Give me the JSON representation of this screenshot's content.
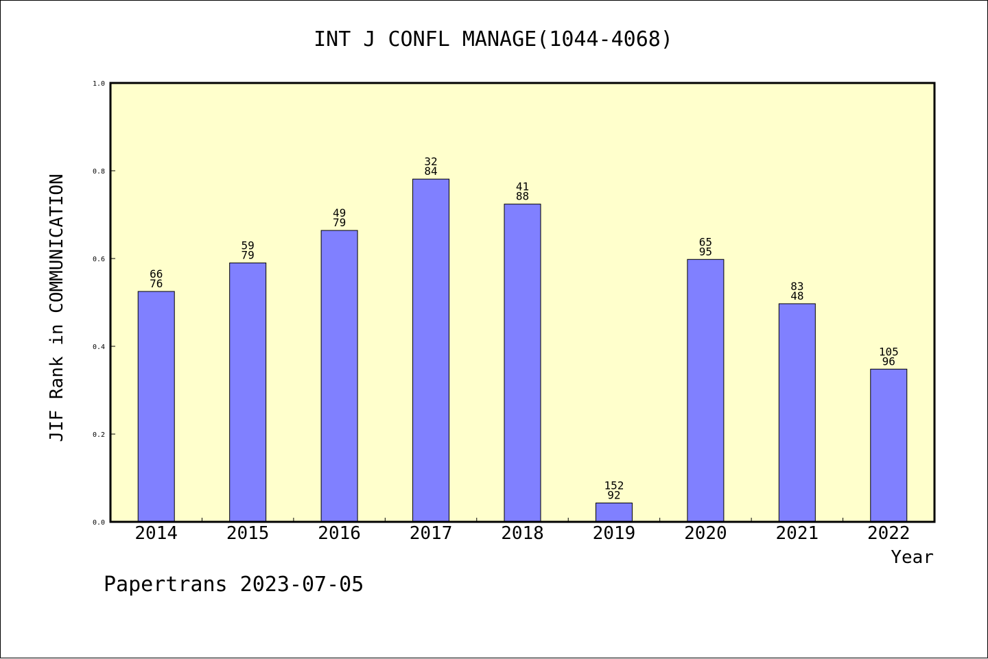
{
  "footer": "Papertrans 2023-07-05",
  "chart_data": {
    "type": "bar",
    "title": "INT J CONFL MANAGE(1044-4068)",
    "xlabel": "Year",
    "ylabel": "JIF Rank in COMMUNICATION",
    "ylim": [
      0,
      1.0
    ],
    "yticks": [
      "0.0",
      "0.2",
      "0.4",
      "0.6",
      "0.8",
      "1.0"
    ],
    "categories": [
      "2014",
      "2015",
      "2016",
      "2017",
      "2018",
      "2019",
      "2020",
      "2021",
      "2022"
    ],
    "values": [
      0.525,
      0.59,
      0.664,
      0.781,
      0.724,
      0.043,
      0.598,
      0.497,
      0.348
    ],
    "labels_top": [
      "66",
      "59",
      "49",
      "32",
      "41",
      "152",
      "65",
      "83",
      "105"
    ],
    "labels_bottom": [
      "76",
      "79",
      "79",
      "84",
      "88",
      "92",
      "95",
      "48",
      "96"
    ],
    "grid": false,
    "colors": {
      "plot_background": "#ffffcc",
      "bar_fill": "#8080ff",
      "bar_stroke": "#000000"
    }
  }
}
